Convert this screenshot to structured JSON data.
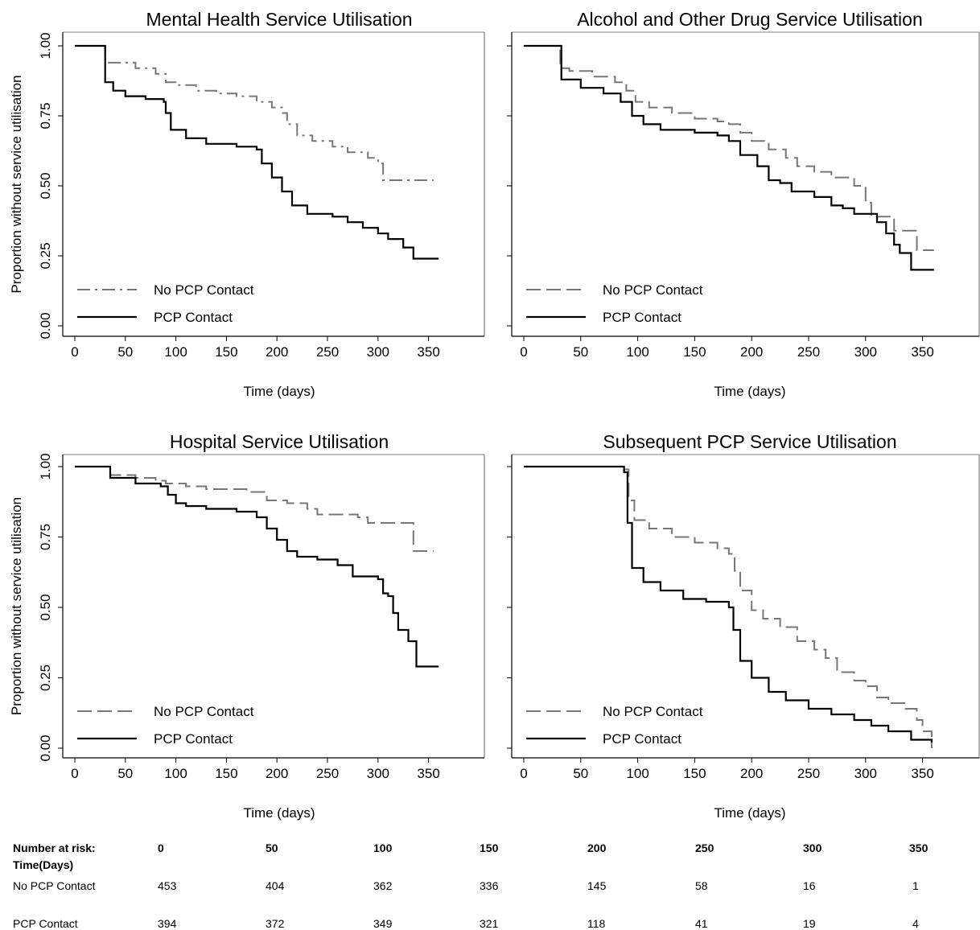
{
  "chart_data": [
    {
      "type": "line",
      "title": "Mental Health Service Utilisation",
      "xlabel": "Time (days)",
      "ylabel": "Proportion without service utilisation",
      "xlim": [
        0,
        360
      ],
      "ylim": [
        0,
        1
      ],
      "x_ticks": [
        "0",
        "50",
        "100",
        "150",
        "200",
        "250",
        "300",
        "350"
      ],
      "y_ticks": [
        "0.00",
        "0.25",
        "0.50",
        "0.75",
        "1.00"
      ],
      "legend": "bottom-left",
      "series": [
        {
          "name": "No PCP Contact",
          "style": "dash-dot",
          "color": "#777777",
          "points": [
            [
              0,
              1
            ],
            [
              27,
              1
            ],
            [
              30,
              0.94
            ],
            [
              60,
              0.92
            ],
            [
              80,
              0.9
            ],
            [
              90,
              0.87
            ],
            [
              100,
              0.86
            ],
            [
              120,
              0.84
            ],
            [
              140,
              0.83
            ],
            [
              160,
              0.82
            ],
            [
              180,
              0.8
            ],
            [
              195,
              0.78
            ],
            [
              205,
              0.76
            ],
            [
              210,
              0.72
            ],
            [
              220,
              0.68
            ],
            [
              235,
              0.66
            ],
            [
              255,
              0.64
            ],
            [
              270,
              0.62
            ],
            [
              290,
              0.6
            ],
            [
              300,
              0.58
            ],
            [
              305,
              0.52
            ],
            [
              355,
              0.52
            ]
          ]
        },
        {
          "name": "PCP Contact",
          "style": "solid",
          "color": "#000000",
          "points": [
            [
              0,
              1
            ],
            [
              27,
              1
            ],
            [
              30,
              0.87
            ],
            [
              38,
              0.84
            ],
            [
              50,
              0.82
            ],
            [
              70,
              0.81
            ],
            [
              88,
              0.8
            ],
            [
              90,
              0.76
            ],
            [
              95,
              0.7
            ],
            [
              110,
              0.67
            ],
            [
              130,
              0.65
            ],
            [
              160,
              0.64
            ],
            [
              180,
              0.63
            ],
            [
              185,
              0.58
            ],
            [
              195,
              0.53
            ],
            [
              205,
              0.48
            ],
            [
              215,
              0.43
            ],
            [
              230,
              0.4
            ],
            [
              255,
              0.39
            ],
            [
              270,
              0.37
            ],
            [
              285,
              0.35
            ],
            [
              300,
              0.33
            ],
            [
              310,
              0.31
            ],
            [
              325,
              0.28
            ],
            [
              335,
              0.24
            ],
            [
              360,
              0.24
            ]
          ]
        }
      ]
    },
    {
      "type": "line",
      "title": "Alcohol and Other Drug Service Utilisation",
      "xlabel": "Time (days)",
      "ylabel": "",
      "xlim": [
        0,
        360
      ],
      "ylim": [
        0,
        1
      ],
      "x_ticks": [
        "0",
        "50",
        "100",
        "150",
        "200",
        "250",
        "300",
        "350"
      ],
      "y_ticks": [],
      "legend": "bottom-left",
      "series": [
        {
          "name": "No PCP Contact",
          "style": "dash",
          "color": "#777777",
          "points": [
            [
              0,
              1
            ],
            [
              28,
              1
            ],
            [
              32,
              0.92
            ],
            [
              40,
              0.91
            ],
            [
              60,
              0.89
            ],
            [
              80,
              0.87
            ],
            [
              90,
              0.84
            ],
            [
              98,
              0.8
            ],
            [
              110,
              0.78
            ],
            [
              130,
              0.76
            ],
            [
              150,
              0.74
            ],
            [
              170,
              0.73
            ],
            [
              180,
              0.72
            ],
            [
              190,
              0.69
            ],
            [
              200,
              0.66
            ],
            [
              215,
              0.63
            ],
            [
              230,
              0.6
            ],
            [
              240,
              0.57
            ],
            [
              255,
              0.55
            ],
            [
              270,
              0.53
            ],
            [
              290,
              0.5
            ],
            [
              300,
              0.44
            ],
            [
              305,
              0.39
            ],
            [
              318,
              0.39
            ],
            [
              325,
              0.34
            ],
            [
              340,
              0.34
            ],
            [
              345,
              0.27
            ],
            [
              360,
              0.27
            ]
          ]
        },
        {
          "name": "PCP Contact",
          "style": "solid",
          "color": "#000000",
          "points": [
            [
              0,
              1
            ],
            [
              28,
              1
            ],
            [
              33,
              0.88
            ],
            [
              50,
              0.85
            ],
            [
              70,
              0.83
            ],
            [
              85,
              0.8
            ],
            [
              95,
              0.75
            ],
            [
              105,
              0.72
            ],
            [
              120,
              0.7
            ],
            [
              150,
              0.69
            ],
            [
              170,
              0.68
            ],
            [
              180,
              0.66
            ],
            [
              190,
              0.61
            ],
            [
              205,
              0.57
            ],
            [
              215,
              0.52
            ],
            [
              225,
              0.51
            ],
            [
              235,
              0.48
            ],
            [
              255,
              0.46
            ],
            [
              270,
              0.43
            ],
            [
              280,
              0.42
            ],
            [
              290,
              0.4
            ],
            [
              300,
              0.4
            ],
            [
              310,
              0.37
            ],
            [
              318,
              0.33
            ],
            [
              325,
              0.29
            ],
            [
              330,
              0.26
            ],
            [
              340,
              0.2
            ],
            [
              360,
              0.2
            ]
          ]
        }
      ]
    },
    {
      "type": "line",
      "title": "Hospital Service Utilisation",
      "xlabel": "Time (days)",
      "ylabel": "Proportion without service utilisation",
      "xlim": [
        0,
        360
      ],
      "ylim": [
        0,
        1
      ],
      "x_ticks": [
        "0",
        "50",
        "100",
        "150",
        "200",
        "250",
        "300",
        "350"
      ],
      "y_ticks": [
        "0.00",
        "0.25",
        "0.50",
        "0.75",
        "1.00"
      ],
      "legend": "bottom-left",
      "series": [
        {
          "name": "No PCP Contact",
          "style": "dash",
          "color": "#777777",
          "points": [
            [
              0,
              1
            ],
            [
              30,
              1
            ],
            [
              35,
              0.97
            ],
            [
              60,
              0.96
            ],
            [
              80,
              0.95
            ],
            [
              90,
              0.94
            ],
            [
              110,
              0.93
            ],
            [
              130,
              0.92
            ],
            [
              170,
              0.91
            ],
            [
              190,
              0.88
            ],
            [
              210,
              0.87
            ],
            [
              230,
              0.85
            ],
            [
              240,
              0.83
            ],
            [
              280,
              0.82
            ],
            [
              290,
              0.8
            ],
            [
              330,
              0.8
            ],
            [
              335,
              0.7
            ],
            [
              355,
              0.7
            ]
          ]
        },
        {
          "name": "PCP Contact",
          "style": "solid",
          "color": "#000000",
          "points": [
            [
              0,
              1
            ],
            [
              30,
              1
            ],
            [
              35,
              0.96
            ],
            [
              60,
              0.94
            ],
            [
              85,
              0.93
            ],
            [
              92,
              0.9
            ],
            [
              100,
              0.87
            ],
            [
              110,
              0.86
            ],
            [
              130,
              0.85
            ],
            [
              160,
              0.84
            ],
            [
              180,
              0.82
            ],
            [
              190,
              0.78
            ],
            [
              200,
              0.74
            ],
            [
              210,
              0.7
            ],
            [
              220,
              0.68
            ],
            [
              240,
              0.67
            ],
            [
              260,
              0.65
            ],
            [
              275,
              0.61
            ],
            [
              300,
              0.6
            ],
            [
              305,
              0.55
            ],
            [
              310,
              0.54
            ],
            [
              315,
              0.48
            ],
            [
              320,
              0.42
            ],
            [
              330,
              0.38
            ],
            [
              338,
              0.29
            ],
            [
              360,
              0.29
            ]
          ]
        }
      ]
    },
    {
      "type": "line",
      "title": "Subsequent PCP Service Utilisation",
      "xlabel": "Time (days)",
      "ylabel": "",
      "xlim": [
        0,
        360
      ],
      "ylim": [
        0,
        1
      ],
      "x_ticks": [
        "0",
        "50",
        "100",
        "150",
        "200",
        "250",
        "300",
        "350"
      ],
      "y_ticks": [],
      "legend": "bottom-left",
      "series": [
        {
          "name": "No PCP Contact",
          "style": "dash",
          "color": "#777777",
          "points": [
            [
              0,
              1
            ],
            [
              80,
              1
            ],
            [
              88,
              0.99
            ],
            [
              92,
              0.88
            ],
            [
              97,
              0.81
            ],
            [
              110,
              0.78
            ],
            [
              130,
              0.75
            ],
            [
              150,
              0.73
            ],
            [
              170,
              0.71
            ],
            [
              180,
              0.69
            ],
            [
              185,
              0.63
            ],
            [
              190,
              0.56
            ],
            [
              200,
              0.49
            ],
            [
              210,
              0.46
            ],
            [
              225,
              0.43
            ],
            [
              240,
              0.38
            ],
            [
              255,
              0.35
            ],
            [
              265,
              0.32
            ],
            [
              275,
              0.27
            ],
            [
              290,
              0.24
            ],
            [
              300,
              0.22
            ],
            [
              310,
              0.18
            ],
            [
              320,
              0.16
            ],
            [
              335,
              0.14
            ],
            [
              345,
              0.1
            ],
            [
              350,
              0.06
            ],
            [
              358,
              0.0
            ]
          ]
        },
        {
          "name": "PCP Contact",
          "style": "solid",
          "color": "#000000",
          "points": [
            [
              0,
              1
            ],
            [
              80,
              1
            ],
            [
              88,
              0.98
            ],
            [
              91,
              0.8
            ],
            [
              95,
              0.64
            ],
            [
              105,
              0.59
            ],
            [
              120,
              0.56
            ],
            [
              140,
              0.53
            ],
            [
              160,
              0.52
            ],
            [
              180,
              0.5
            ],
            [
              184,
              0.42
            ],
            [
              190,
              0.31
            ],
            [
              200,
              0.25
            ],
            [
              215,
              0.2
            ],
            [
              230,
              0.17
            ],
            [
              250,
              0.14
            ],
            [
              270,
              0.12
            ],
            [
              290,
              0.1
            ],
            [
              305,
              0.08
            ],
            [
              320,
              0.06
            ],
            [
              340,
              0.03
            ],
            [
              358,
              0.02
            ]
          ]
        }
      ]
    }
  ],
  "risk_table": {
    "header": "Number at risk:",
    "time_label": "Time(Days)",
    "times": [
      "0",
      "50",
      "100",
      "150",
      "200",
      "250",
      "300",
      "350"
    ],
    "rows": [
      {
        "label": "No PCP Contact",
        "values": [
          "453",
          "404",
          "362",
          "336",
          "145",
          "58",
          "16",
          "1"
        ]
      },
      {
        "label": "PCP Contact",
        "values": [
          "394",
          "372",
          "349",
          "321",
          "118",
          "41",
          "19",
          "4"
        ]
      }
    ]
  }
}
